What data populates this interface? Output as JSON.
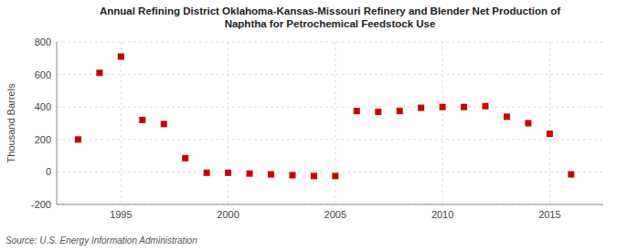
{
  "chart_data": {
    "type": "scatter",
    "title": "Annual Refining District Oklahoma-Kansas-Missouri Refinery and Blender Net Production of\nNaphtha for Petrochemical Feedstock Use",
    "ylabel": "Thousand Barrels",
    "annotation": "Source: U.S. Energy Information Administration",
    "x": [
      1993,
      1994,
      1995,
      1996,
      1997,
      1998,
      1999,
      2000,
      2001,
      2002,
      2003,
      2004,
      2005,
      2006,
      2007,
      2008,
      2009,
      2010,
      2011,
      2012,
      2013,
      2014,
      2015,
      2016
    ],
    "values": [
      200,
      610,
      710,
      320,
      295,
      85,
      -5,
      -5,
      -10,
      -15,
      -20,
      -25,
      -25,
      375,
      370,
      375,
      395,
      400,
      400,
      405,
      340,
      300,
      235,
      -15
    ],
    "color": "#cc0000",
    "marker": "square",
    "ylim": [
      -200,
      800
    ],
    "yticks": [
      -200,
      0,
      200,
      400,
      600,
      800
    ],
    "xlim": [
      1992,
      2017.5
    ],
    "xticks": [
      1995,
      2000,
      2005,
      2010,
      2015
    ],
    "grid": true
  }
}
